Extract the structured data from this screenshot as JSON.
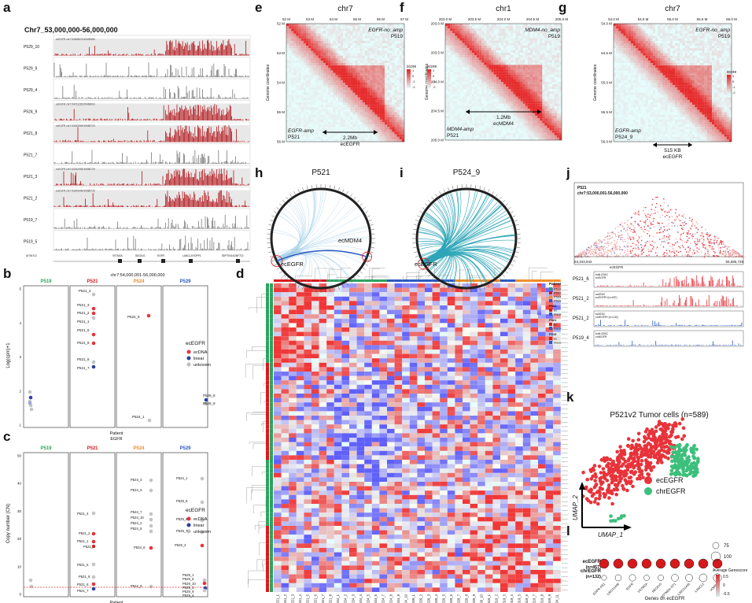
{
  "panel_labels": [
    "a",
    "b",
    "c",
    "d",
    "e",
    "f",
    "g",
    "h",
    "i",
    "j",
    "k",
    "l"
  ],
  "panel_a": {
    "title": "Chr7_53,000,000-56,000,000",
    "tracks": [
      {
        "name": "P529_10",
        "color": "#b3161b",
        "ann": "ecEGFR chr7:54908676-55490856"
      },
      {
        "name": "P529_9",
        "color": "#7a7a7a",
        "ann": ""
      },
      {
        "name": "P529_4",
        "color": "#7a7a7a",
        "ann": ""
      },
      {
        "name": "P524_9",
        "color": "#b3161b",
        "ann": "ecEGFR chr7:54731265-55468903"
      },
      {
        "name": "P521_8",
        "color": "#b3161b",
        "ann": "ecEGFR chr7:53343998-55585729"
      },
      {
        "name": "P521_7",
        "color": "#7a7a7a",
        "ann": ""
      },
      {
        "name": "P521_3",
        "color": "#b3161b",
        "ann": "ecEGFR chr7:53343998-55585729"
      },
      {
        "name": "P521_2",
        "color": "#b3161b",
        "ann": "ecEGFR chr7:53343998-55585729"
      },
      {
        "name": "P519_7",
        "color": "#7a7a7a",
        "ann": ""
      },
      {
        "name": "P519_5",
        "color": "#7a7a7a",
        "ann": ""
      }
    ],
    "genes": [
      "ATXN7L3",
      "VSTM2A",
      "SEC61G",
      "EGFR",
      "LANCL2/VOPP1",
      "SEPTIN14/ZNF713"
    ]
  },
  "panel_b": {
    "region": "chr7:54,000,001-56,000,000",
    "ylabel": "Log(cpm)+1",
    "xlabel": "Patient",
    "xlabel2": "EGFR",
    "patients": [
      {
        "name": "P519",
        "color": "#2ca25f"
      },
      {
        "name": "P521",
        "color": "#d7191c"
      },
      {
        "name": "P524",
        "color": "#f28e2b"
      },
      {
        "name": "P529",
        "color": "#2b59c3"
      }
    ],
    "yticks": [
      "1",
      "2",
      "3",
      "4",
      "5"
    ],
    "legend_title": "ecEGFR",
    "legend": [
      {
        "label": "ecDNA",
        "color": "#e8333a"
      },
      {
        "label": "linear",
        "color": "#2b3fa0"
      },
      {
        "label": "unknown",
        "color": "#bdbdbd"
      }
    ],
    "point_labels": [
      "P521_4",
      "P521_3",
      "P521_2",
      "P521_1",
      "P521_5",
      "P521_8",
      "P521_6",
      "P521_7",
      "P524_9",
      "P524_1",
      "P529_8",
      "P529_9"
    ]
  },
  "panel_c": {
    "ylabel": "Copy number (CN)",
    "xlabel": "Patient",
    "yticks": [
      "0",
      "10",
      "20",
      "30",
      "40",
      "50"
    ],
    "legend_title": "ecEGFR",
    "legend": [
      {
        "label": "ecDNA",
        "color": "#e8333a"
      },
      {
        "label": "linear",
        "color": "#2b3fa0"
      },
      {
        "label": "unknown",
        "color": "#bdbdbd"
      }
    ],
    "point_labels": [
      "P521_4",
      "P521_2",
      "P521_1",
      "P521_3",
      "P521_5",
      "P521_8",
      "P521_6",
      "P521_7",
      "P524_3",
      "P524_5",
      "P524_7",
      "P524_10",
      "P524_2",
      "P524_8",
      "P524_6",
      "P524_9",
      "P524_1",
      "P529_8",
      "P529_6",
      "P529_7",
      "P529_2",
      "P529_1",
      "P529_5",
      "P529_10",
      "P529_3",
      "P529_9",
      "P529_4"
    ]
  },
  "panel_d": {
    "legend_title": "Patient",
    "legend_patients": [
      "P519",
      "P521",
      "P524",
      "P529"
    ],
    "legend_ec_groups": [
      {
        "title": "P524",
        "items": [
          "ec",
          "linear"
        ]
      },
      {
        "title": "P521",
        "items": [
          "ec",
          "linear"
        ]
      },
      {
        "title": "P519",
        "items": [
          "ec",
          "linear"
        ]
      }
    ],
    "scale_ticks": [
      "2",
      "1",
      "0",
      "-1",
      "-2"
    ],
    "column_labels": [
      "P521_1",
      "P521_2",
      "P521_3",
      "P521_4",
      "P521_5",
      "P521_6",
      "P521_7",
      "P521_8",
      "P524_1",
      "P524_2",
      "P524_3",
      "P524_4",
      "P524_5",
      "P524_6",
      "P524_7",
      "P524_8",
      "P524_9",
      "P524_10",
      "P529_1",
      "P529_2",
      "P529_3",
      "P529_4",
      "P529_5",
      "P529_6",
      "P529_7",
      "P529_8",
      "P529_9",
      "P529_10",
      "P519_1",
      "P519_2",
      "P519_3",
      "P519_4",
      "P519_5",
      "P519_6",
      "P519_7",
      "P519_8",
      "P519_9",
      "P524_11"
    ]
  },
  "panel_e": {
    "title": "chr7",
    "xticks": [
      "52 M",
      "53 M",
      "54 M",
      "55 M",
      "56 M",
      "57 M"
    ],
    "yticks": [
      "52 M",
      "53 M",
      "54 M",
      "55 M",
      "56 M"
    ],
    "ylabel": "Genome coordinates",
    "top_label": "EGFR-no_amp",
    "top_sample": "P519",
    "bottom_label": "EGFR-amp",
    "bottom_sample": "P521",
    "span": "2.2Mb",
    "span_name": "ecEGFR",
    "scale_title": "score",
    "scale_ticks": [
      "1",
      "0",
      "-1",
      "-2"
    ]
  },
  "panel_f": {
    "title": "chr1",
    "xticks": [
      "203.0 M",
      "203.5 M",
      "204.0 M",
      "204.5 M",
      "205.0 M"
    ],
    "yticks": [
      "203.0 M",
      "203.5 M",
      "204.0 M",
      "204.5 M",
      "205.0 M"
    ],
    "ylabel": "Genome coordinates",
    "top_label": "MDM4-no_amp",
    "top_sample": "P519",
    "bottom_label": "MDM4-amp",
    "bottom_sample": "P521",
    "span": "1.2Mb",
    "span_name": "ecMDM4",
    "scale_title": "score",
    "scale_ticks": [
      "1",
      "0",
      "-1",
      "-2"
    ]
  },
  "panel_g": {
    "title": "chr7",
    "xticks": [
      "54.0 M",
      "54.5 M",
      "55.0 M",
      "55.5 M",
      "56.0 M"
    ],
    "yticks": [
      "54.0 M",
      "54.5 M",
      "55.0 M",
      "55.5 M",
      "56.0 M"
    ],
    "ylabel": "Genome coordinates",
    "top_label": "EGFR-no_amp",
    "top_sample": "P519",
    "bottom_label": "EGFR-amp",
    "bottom_sample": "P524_9",
    "span": "515 KB",
    "span_name": "ecEGFR",
    "scale_title": "score",
    "scale_ticks": [
      "1",
      "0",
      "-1",
      "-2"
    ]
  },
  "panel_h": {
    "title": "P521",
    "label1": "ecEGFR",
    "label2": "ecMDM4"
  },
  "panel_i": {
    "title": "P524_9",
    "label1": "ecEGFR"
  },
  "panel_j": {
    "sample": "P521",
    "region": "chr7:53,000,001-56,000,000",
    "left_coord": "53,343,942",
    "right_coord": "55,585,729",
    "gene_label": "ecEGFR",
    "tracks": [
      {
        "name": "P521_6",
        "sub": "bulk ATAC",
        "sub2": "ecEGFR",
        "color": "#e8333a"
      },
      {
        "name": "P521_2",
        "sub": "scATAC",
        "sub2": "ecEGFR+(n=457)",
        "color": "#e8333a"
      },
      {
        "name": "P521_2",
        "sub": "scATAC",
        "sub2": "chrEGFR+(n=132)",
        "color": "#2b59c3"
      },
      {
        "name": "P519_4",
        "sub": "bulk ATAC",
        "sub2": "chrEGFR",
        "color": "#2b59c3"
      }
    ]
  },
  "panel_k": {
    "title": "P521v2 Tumor cells (n=589)",
    "xlabel": "UMAP_1",
    "ylabel": "UMAP_2",
    "legend": [
      {
        "label": "ecEGFR",
        "color": "#e8333a"
      },
      {
        "label": "chrEGFR",
        "color": "#3dbf7c"
      }
    ]
  },
  "panel_l": {
    "rows": [
      "ecEGFR",
      "chrEGFR"
    ],
    "row_counts": [
      "(n=457)",
      "(n=132)"
    ],
    "genes": [
      "EGFR-AS1",
      "LINC01446",
      "EGFR",
      "VSTM2A",
      "SEC61G",
      "VSTM2A-OT1",
      "LINC01445",
      "LANCL2",
      "VOPP1"
    ],
    "xlabel": "Genes on ecEGFR",
    "size_legend": [
      "75",
      "100"
    ],
    "color_title": "Average Genescore",
    "color_ticks": [
      "0.5",
      "0",
      "-0.5"
    ]
  }
}
